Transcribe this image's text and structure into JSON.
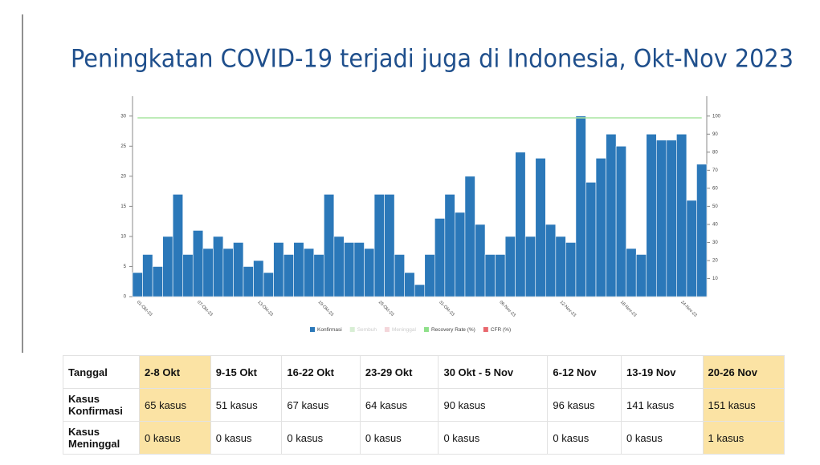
{
  "chart_data": {
    "type": "bar",
    "title": "Peningkatan COVID-19 terjadi juga di Indonesia, Okt-Nov 2023",
    "categories": [
      "01-Okt-23",
      null,
      null,
      null,
      null,
      null,
      "07-Okt-23",
      null,
      null,
      null,
      null,
      null,
      "13-Okt-23",
      null,
      null,
      null,
      null,
      null,
      "19-Okt-23",
      null,
      null,
      null,
      null,
      null,
      "25-Okt-23",
      null,
      null,
      null,
      null,
      null,
      "31-Okt-23",
      null,
      null,
      null,
      null,
      null,
      "06-Nov-23",
      null,
      null,
      null,
      null,
      null,
      "12-Nov-23",
      null,
      null,
      null,
      null,
      null,
      "18-Nov-23",
      null,
      null,
      null,
      null,
      null,
      "24-Nov-23",
      null,
      null
    ],
    "series": [
      {
        "name": "Konfirmasi",
        "color": "#2b78b9",
        "values": [
          4,
          7,
          5,
          10,
          17,
          7,
          11,
          8,
          10,
          8,
          9,
          5,
          6,
          4,
          9,
          7,
          9,
          8,
          7,
          17,
          10,
          9,
          9,
          8,
          17,
          17,
          7,
          4,
          2,
          7,
          13,
          17,
          14,
          20,
          12,
          7,
          7,
          10,
          24,
          10,
          23,
          12,
          10,
          9,
          30,
          19,
          23,
          27,
          25,
          8,
          7,
          27,
          26,
          26,
          27,
          16,
          22
        ]
      },
      {
        "name": "Recovery Rate (%)",
        "color": "#a8e6a0",
        "axis": "y2",
        "type": "line",
        "values": [
          99,
          99,
          99,
          99,
          99,
          99,
          99,
          99,
          99,
          99,
          99,
          99,
          99,
          99,
          99,
          99,
          99,
          99,
          99,
          99,
          99,
          99,
          99,
          99,
          99,
          99,
          99,
          99,
          99,
          99,
          99,
          99,
          99,
          99,
          99,
          99,
          99,
          99,
          99,
          99,
          99,
          99,
          99,
          99,
          99,
          99,
          99,
          99,
          99,
          99,
          99,
          99,
          99,
          99,
          99,
          99,
          99
        ]
      }
    ],
    "legend": [
      {
        "name": "Konfirmasi",
        "color": "#2b78b9"
      },
      {
        "name": "Sembuh",
        "color": "#d8eed4",
        "hidden": true
      },
      {
        "name": "Meninggal",
        "color": "#f4d6da",
        "hidden": true
      },
      {
        "name": "Recovery Rate (%)",
        "color": "#8fe08a"
      },
      {
        "name": "CFR (%)",
        "color": "#e8686e"
      }
    ],
    "ylim": [
      0,
      33.3
    ],
    "yticks": [
      0,
      5,
      10,
      15,
      20,
      25,
      30
    ],
    "y2lim": [
      0,
      111
    ],
    "y2ticks": [
      10,
      20,
      30,
      40,
      50,
      60,
      70,
      80,
      90,
      100
    ]
  },
  "table": {
    "rows": [
      [
        "Tanggal",
        "2-8 Okt",
        "9-15 Okt",
        "16-22 Okt",
        "23-29 Okt",
        "30 Okt - 5 Nov",
        "6-12 Nov",
        "13-19 Nov",
        "20-26 Nov"
      ],
      [
        "Kasus Konfirmasi",
        "65 kasus",
        "51 kasus",
        "67 kasus",
        "64 kasus",
        "90 kasus",
        "96 kasus",
        "141 kasus",
        "151 kasus"
      ],
      [
        "Kasus Meninggal",
        "0 kasus",
        "0 kasus",
        "0 kasus",
        "0 kasus",
        "0 kasus",
        "0 kasus",
        "0 kasus",
        "1 kasus"
      ]
    ],
    "highlight_columns": [
      1,
      8
    ]
  }
}
